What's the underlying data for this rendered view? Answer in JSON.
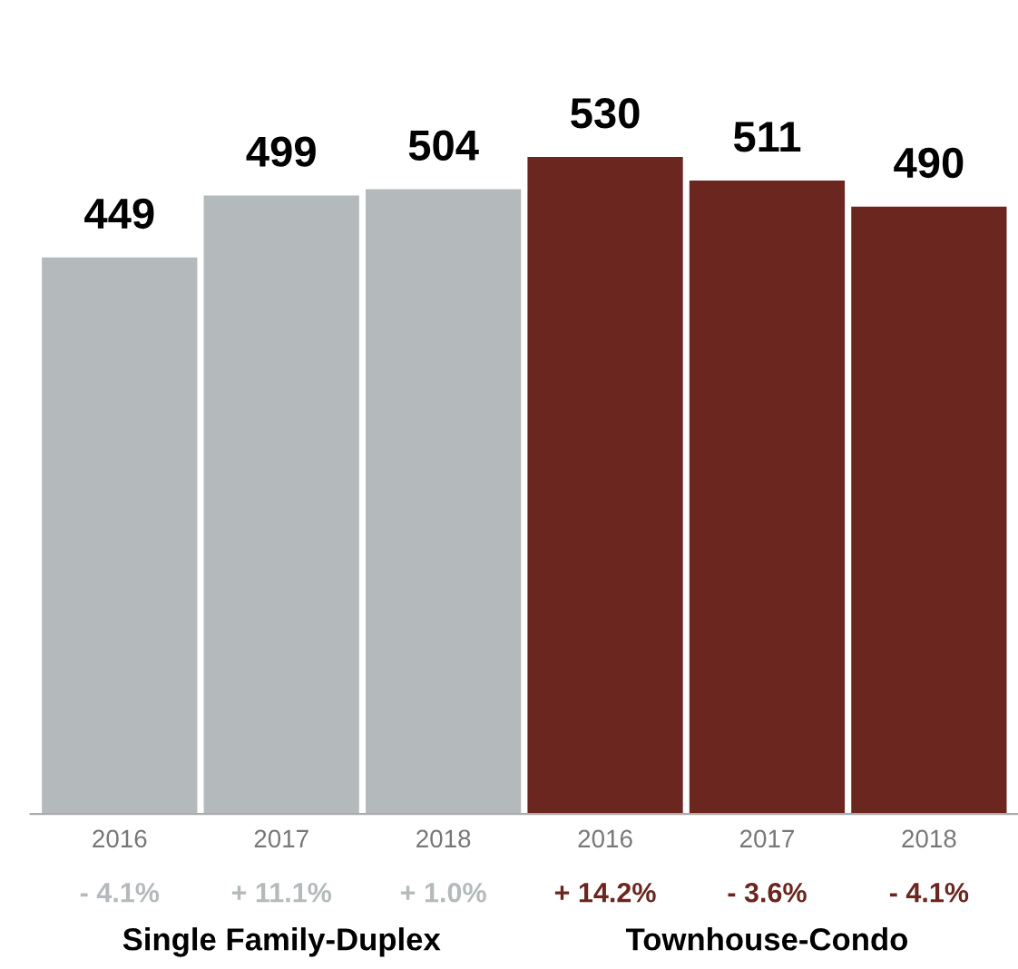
{
  "chart_data": {
    "type": "bar",
    "categories": [
      "2016",
      "2017",
      "2018",
      "2016",
      "2017",
      "2018"
    ],
    "values": [
      449,
      499,
      504,
      530,
      511,
      490
    ],
    "colors": [
      "#b4babb",
      "#b4babb",
      "#b4babb",
      "#6b2620",
      "#6b2620",
      "#6b2620"
    ],
    "data_labels": true,
    "annotations": [
      "- 4.1%",
      "+ 11.1%",
      "+ 1.0%",
      "+ 14.2%",
      "- 3.6%",
      "- 4.1%",
      "Single Family-Duplex",
      "Townhouse-Condo"
    ],
    "grid": false,
    "legend": false
  }
}
